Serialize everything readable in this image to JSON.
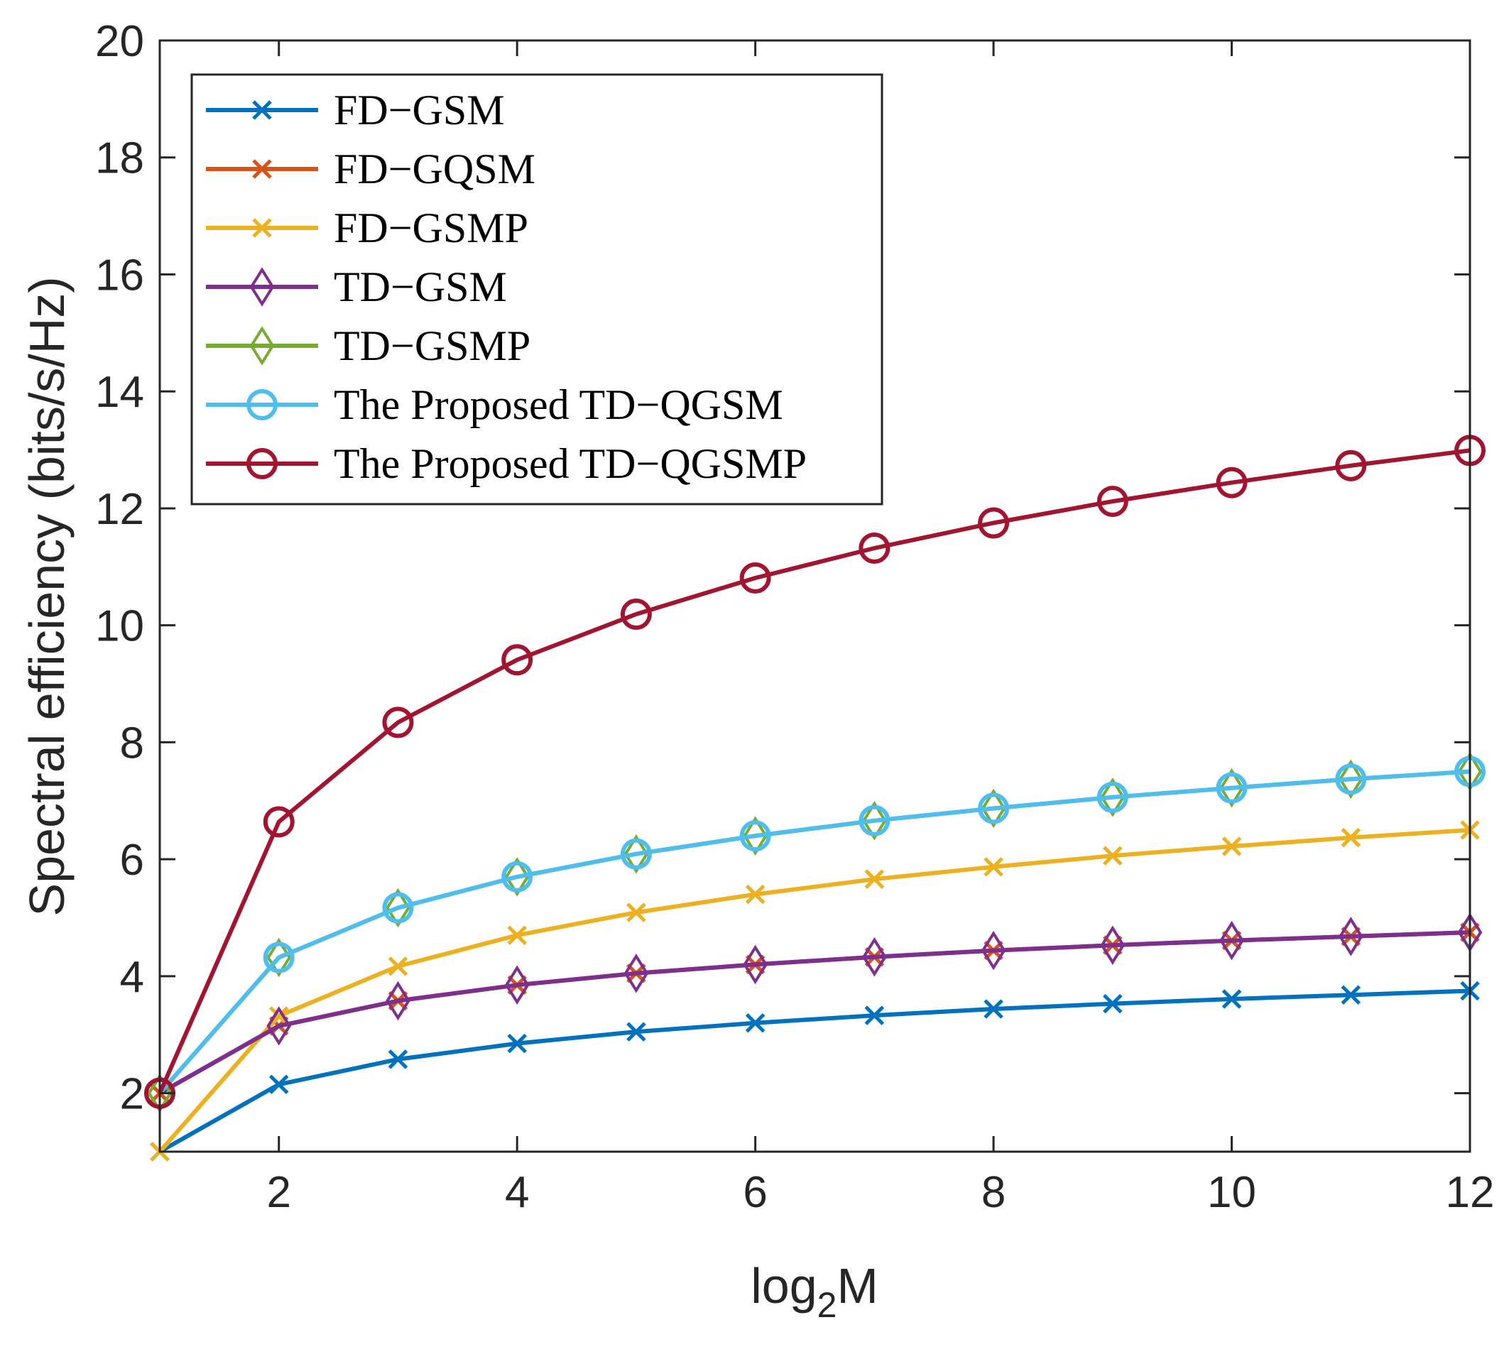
{
  "chart_data": {
    "type": "line",
    "title": "",
    "xlabel": {
      "main": "log",
      "sub": "2",
      "tail": "M"
    },
    "ylabel": "Spectral efficiency (bits/s/Hz)",
    "xlim": [
      1,
      12
    ],
    "ylim": [
      1,
      20
    ],
    "x_ticks": [
      2,
      4,
      6,
      8,
      10,
      12
    ],
    "y_ticks": [
      2,
      4,
      6,
      8,
      10,
      12,
      14,
      16,
      18,
      20
    ],
    "grid": false,
    "legend_position": "top-left",
    "x": [
      1,
      2,
      3,
      4,
      5,
      6,
      7,
      8,
      9,
      10,
      11,
      12
    ],
    "series": [
      {
        "name": "FD−GSM",
        "color": "#0072BD",
        "marker": "x",
        "values": [
          1.0,
          2.15,
          2.58,
          2.85,
          3.05,
          3.2,
          3.33,
          3.44,
          3.53,
          3.61,
          3.68,
          3.75
        ]
      },
      {
        "name": "FD−GQSM",
        "color": "#D95319",
        "marker": "x",
        "values": [
          2.0,
          3.15,
          3.58,
          3.85,
          4.05,
          4.2,
          4.33,
          4.44,
          4.53,
          4.61,
          4.68,
          4.75
        ]
      },
      {
        "name": "FD−GSMP",
        "color": "#EDB120",
        "marker": "x",
        "values": [
          1.0,
          3.32,
          4.17,
          4.7,
          5.09,
          5.4,
          5.66,
          5.87,
          6.06,
          6.22,
          6.37,
          6.5
        ]
      },
      {
        "name": "TD−GSM",
        "color": "#7E2F8E",
        "marker": "diamond",
        "values": [
          2.0,
          3.15,
          3.58,
          3.85,
          4.05,
          4.2,
          4.33,
          4.44,
          4.53,
          4.61,
          4.68,
          4.75
        ]
      },
      {
        "name": "TD−GSMP",
        "color": "#77AC30",
        "marker": "diamond",
        "values": [
          2.0,
          4.32,
          5.17,
          5.7,
          6.09,
          6.4,
          6.66,
          6.87,
          7.06,
          7.22,
          7.37,
          7.5
        ]
      },
      {
        "name": "The Proposed TD−QGSM",
        "color": "#4DBEEE",
        "marker": "circle",
        "values": [
          2.0,
          4.32,
          5.17,
          5.7,
          6.09,
          6.4,
          6.66,
          6.87,
          7.06,
          7.22,
          7.37,
          7.5
        ]
      },
      {
        "name": "The Proposed TD−QGSMP",
        "color": "#A2142F",
        "marker": "circle",
        "values": [
          2.0,
          6.64,
          8.34,
          9.41,
          10.19,
          10.81,
          11.32,
          11.75,
          12.12,
          12.44,
          12.73,
          12.99
        ]
      }
    ]
  }
}
